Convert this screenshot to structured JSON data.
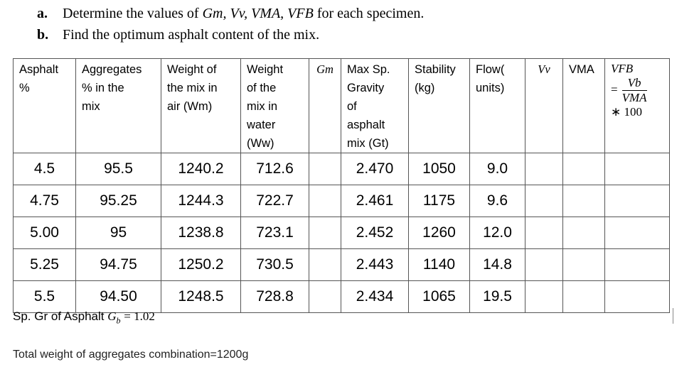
{
  "questions": [
    {
      "label": "a.",
      "text": "Determine the values of",
      "math": "Gm, Vv, VMA, VFB",
      "tail": "for each specimen."
    },
    {
      "label": "b.",
      "text": "Find the optimum asphalt content of the mix."
    }
  ],
  "table": {
    "headers": [
      {
        "key": "asphalt",
        "lines": [
          "Asphalt",
          "%"
        ]
      },
      {
        "key": "aggregates",
        "lines": [
          "Aggregates",
          "% in the",
          "mix"
        ]
      },
      {
        "key": "weight_air",
        "lines": [
          "Weight of",
          "the mix in",
          "air (Wm)"
        ]
      },
      {
        "key": "weight_water",
        "lines": [
          "Weight",
          "of the",
          "mix in",
          "water",
          "(Ww)"
        ]
      },
      {
        "key": "gm",
        "lines": [
          "Gm"
        ]
      },
      {
        "key": "max_sp",
        "lines": [
          "Max Sp.",
          "Gravity",
          "of",
          "asphalt",
          "mix (Gt)"
        ]
      },
      {
        "key": "stability",
        "lines": [
          "Stability",
          "(kg)"
        ]
      },
      {
        "key": "flow",
        "lines": [
          "Flow(",
          "units)"
        ]
      },
      {
        "key": "vv",
        "lines": [
          "Vv"
        ]
      },
      {
        "key": "vma",
        "lines": [
          "VMA"
        ]
      },
      {
        "key": "vfb",
        "title": "VFB",
        "eq": "=",
        "num": "Vb",
        "den": "VMA",
        "mult": "∗ 100"
      }
    ],
    "rows": [
      [
        "4.5",
        "95.5",
        "1240.2",
        "712.6",
        "",
        "2.470",
        "1050",
        "9.0",
        "",
        "",
        ""
      ],
      [
        "4.75",
        "95.25",
        "1244.3",
        "722.7",
        "",
        "2.461",
        "1175",
        "9.6",
        "",
        "",
        ""
      ],
      [
        "5.00",
        "95",
        "1238.8",
        "723.1",
        "",
        "2.452",
        "1260",
        "12.0",
        "",
        "",
        ""
      ],
      [
        "5.25",
        "94.75",
        "1250.2",
        "730.5",
        "",
        "2.443",
        "1140",
        "14.8",
        "",
        "",
        ""
      ],
      [
        "5.5",
        "94.50",
        "1248.5",
        "728.8",
        "",
        "2.434",
        "1065",
        "19.5",
        "",
        "",
        ""
      ]
    ]
  },
  "notes": {
    "asphalt_gravity_label": "Sp. Gr of Asphalt",
    "asphalt_gravity_symbol": "Gb",
    "asphalt_gravity_value": "= 1.02",
    "aggregate_total": "Total weight of aggregates combination=1200g"
  }
}
